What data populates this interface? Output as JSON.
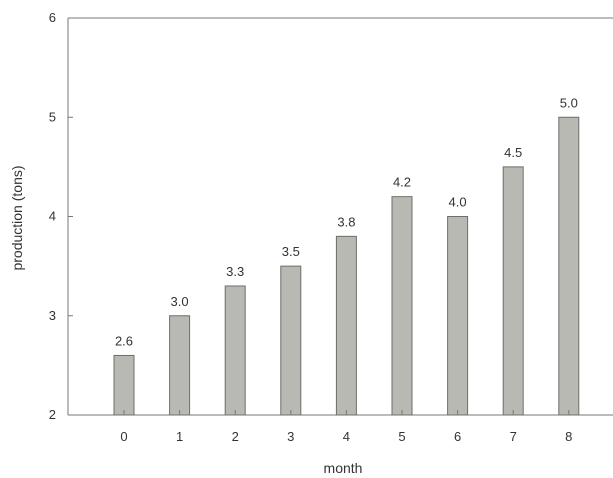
{
  "chart_data": {
    "type": "bar",
    "categories": [
      "0",
      "1",
      "2",
      "3",
      "4",
      "5",
      "6",
      "7",
      "8"
    ],
    "values": [
      2.6,
      3.0,
      3.3,
      3.5,
      3.8,
      4.2,
      4.0,
      4.5,
      5.0
    ],
    "data_labels": [
      "2.6",
      "3.0",
      "3.3",
      "3.5",
      "3.8",
      "4.2",
      "4.0",
      "4.5",
      "5.0"
    ],
    "y_ticks": [
      "2",
      "3",
      "4",
      "5",
      "6"
    ],
    "xlabel": "month",
    "ylabel": "production (tons)",
    "ylim": [
      2,
      6
    ],
    "grid": false,
    "colors": {
      "bar_fill": "#b9b9b3",
      "bar_stroke": "#6e6e6a",
      "axis": "#777777",
      "text": "#333333"
    }
  }
}
